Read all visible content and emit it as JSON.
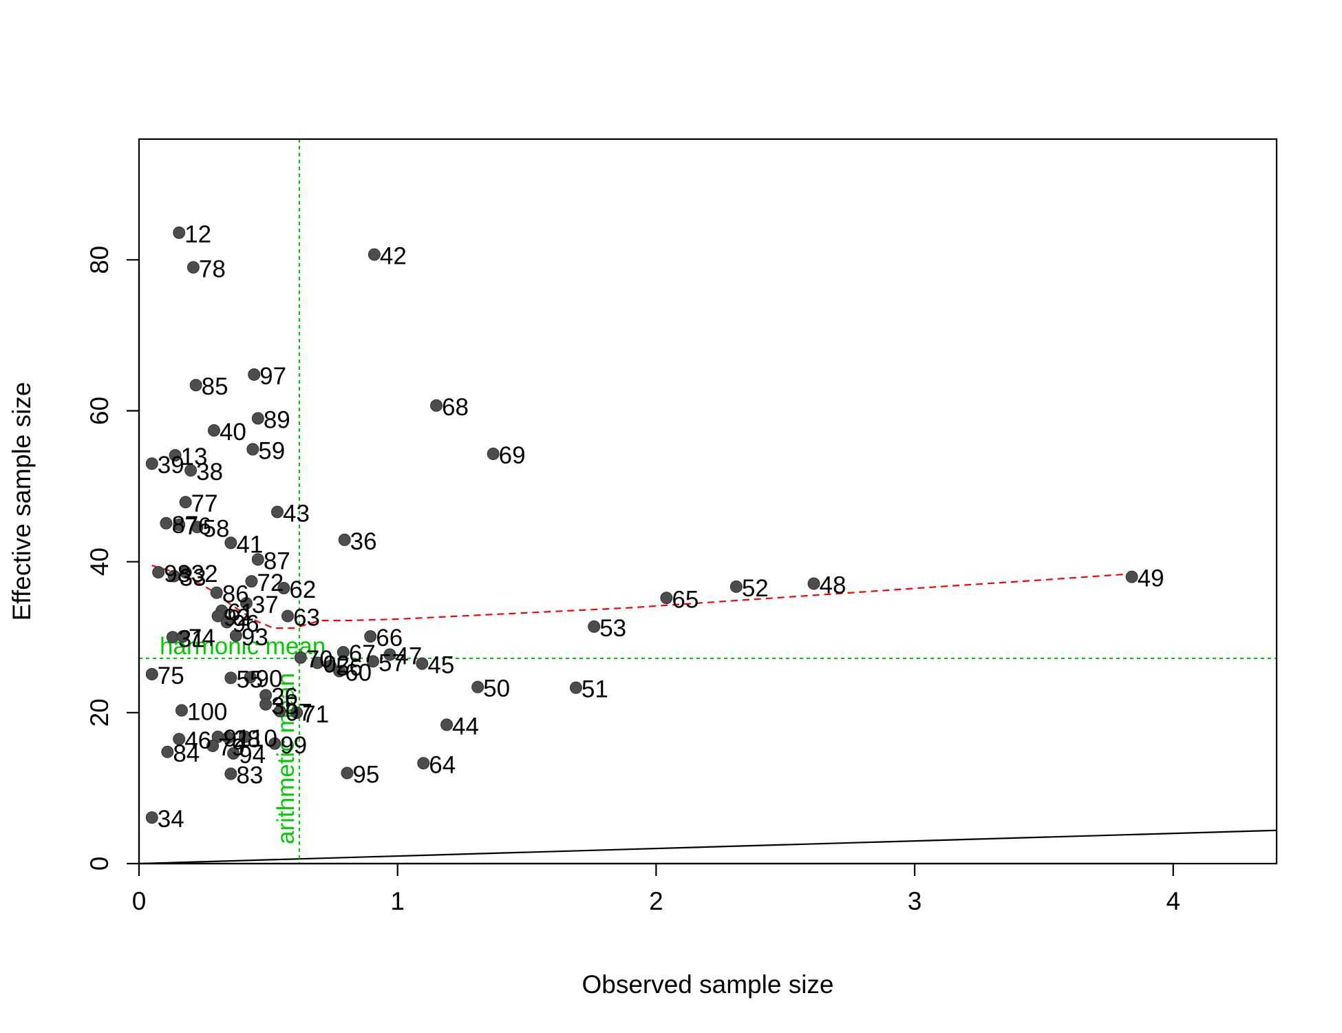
{
  "chart_data": {
    "type": "scatter",
    "title": "",
    "xlabel": "Observed sample size",
    "ylabel": "Effective sample size",
    "xlim": [
      0,
      4.4
    ],
    "ylim": [
      0,
      96
    ],
    "xticks": [
      0,
      1,
      2,
      3,
      4
    ],
    "yticks": [
      0,
      20,
      40,
      60,
      80
    ],
    "grid": false,
    "point_color": "#4d4d4d",
    "trend_color": "#ff0000",
    "reference_color": "#00cc00",
    "reference_lines": {
      "horizontal": {
        "value": 27.2,
        "label": "harmonic mean"
      },
      "vertical": {
        "value": 0.62,
        "label": "arithmetic mean"
      }
    },
    "identity_line": {
      "slope": 1,
      "intercept": 0
    },
    "trend_line": [
      [
        0.05,
        39.5
      ],
      [
        0.12,
        38.8
      ],
      [
        0.2,
        37.8
      ],
      [
        0.28,
        36.2
      ],
      [
        0.36,
        34.2
      ],
      [
        0.45,
        32.2
      ],
      [
        0.52,
        31.2
      ],
      [
        0.6,
        31.2
      ],
      [
        0.7,
        32.2
      ],
      [
        0.8,
        32.2
      ],
      [
        1.0,
        32.4
      ],
      [
        1.3,
        32.9
      ],
      [
        1.6,
        33.4
      ],
      [
        1.9,
        33.9
      ],
      [
        2.2,
        34.6
      ],
      [
        2.5,
        35.3
      ],
      [
        2.8,
        36.0
      ],
      [
        3.1,
        36.7
      ],
      [
        3.5,
        37.6
      ],
      [
        3.84,
        38.4
      ]
    ],
    "points": [
      {
        "id": "12",
        "x": 0.155,
        "y": 83.6
      },
      {
        "id": "78",
        "x": 0.21,
        "y": 79.0
      },
      {
        "id": "42",
        "x": 0.91,
        "y": 80.7
      },
      {
        "id": "97",
        "x": 0.445,
        "y": 64.8
      },
      {
        "id": "85",
        "x": 0.22,
        "y": 63.4
      },
      {
        "id": "68",
        "x": 1.15,
        "y": 60.7
      },
      {
        "id": "89",
        "x": 0.46,
        "y": 59.0
      },
      {
        "id": "40",
        "x": 0.29,
        "y": 57.4
      },
      {
        "id": "59",
        "x": 0.44,
        "y": 54.9
      },
      {
        "id": "69",
        "x": 1.37,
        "y": 54.3
      },
      {
        "id": "13",
        "x": 0.14,
        "y": 54.1
      },
      {
        "id": "39",
        "x": 0.05,
        "y": 53.0
      },
      {
        "id": "38",
        "x": 0.2,
        "y": 52.1
      },
      {
        "id": "77",
        "x": 0.18,
        "y": 47.9
      },
      {
        "id": "43",
        "x": 0.535,
        "y": 46.6
      },
      {
        "id": "87",
        "x": 0.105,
        "y": 45.1
      },
      {
        "id": "76",
        "x": 0.155,
        "y": 44.9
      },
      {
        "id": "58",
        "x": 0.225,
        "y": 44.6
      },
      {
        "id": "36",
        "x": 0.795,
        "y": 42.9
      },
      {
        "id": "41",
        "x": 0.355,
        "y": 42.5
      },
      {
        "id": "87",
        "x": 0.46,
        "y": 40.3
      },
      {
        "id": "98",
        "x": 0.075,
        "y": 38.6
      },
      {
        "id": "32",
        "x": 0.18,
        "y": 38.6
      },
      {
        "id": "33",
        "x": 0.135,
        "y": 38.1
      },
      {
        "id": "72",
        "x": 0.435,
        "y": 37.4
      },
      {
        "id": "62",
        "x": 0.56,
        "y": 36.5
      },
      {
        "id": "86",
        "x": 0.3,
        "y": 35.9
      },
      {
        "id": "37",
        "x": 0.415,
        "y": 34.5
      },
      {
        "id": "63",
        "x": 0.575,
        "y": 32.8
      },
      {
        "id": "61",
        "x": 0.32,
        "y": 33.5
      },
      {
        "id": "92",
        "x": 0.305,
        "y": 32.8
      },
      {
        "id": "96",
        "x": 0.34,
        "y": 32.0
      },
      {
        "id": "93",
        "x": 0.375,
        "y": 30.2
      },
      {
        "id": "66",
        "x": 0.895,
        "y": 30.1
      },
      {
        "id": "31",
        "x": 0.13,
        "y": 30.0
      },
      {
        "id": "74",
        "x": 0.17,
        "y": 30.1
      },
      {
        "id": "53",
        "x": 1.76,
        "y": 31.4
      },
      {
        "id": "65",
        "x": 2.04,
        "y": 35.2
      },
      {
        "id": "52",
        "x": 2.31,
        "y": 36.7
      },
      {
        "id": "48",
        "x": 2.61,
        "y": 37.1
      },
      {
        "id": "49",
        "x": 3.84,
        "y": 38.0
      },
      {
        "id": "70",
        "x": 0.625,
        "y": 27.3
      },
      {
        "id": "67",
        "x": 0.79,
        "y": 28.0
      },
      {
        "id": "47",
        "x": 0.97,
        "y": 27.7
      },
      {
        "id": "02",
        "x": 0.69,
        "y": 26.6
      },
      {
        "id": "56",
        "x": 0.74,
        "y": 26.2
      },
      {
        "id": "60",
        "x": 0.775,
        "y": 25.5
      },
      {
        "id": "57",
        "x": 0.905,
        "y": 26.8
      },
      {
        "id": "45",
        "x": 1.095,
        "y": 26.5
      },
      {
        "id": "75",
        "x": 0.05,
        "y": 25.1
      },
      {
        "id": "55",
        "x": 0.355,
        "y": 24.6
      },
      {
        "id": "90",
        "x": 0.43,
        "y": 24.7
      },
      {
        "id": "50",
        "x": 1.31,
        "y": 23.4
      },
      {
        "id": "51",
        "x": 1.69,
        "y": 23.3
      },
      {
        "id": "26",
        "x": 0.49,
        "y": 22.3
      },
      {
        "id": "35",
        "x": 0.49,
        "y": 21.1
      },
      {
        "id": "100",
        "x": 0.165,
        "y": 20.3
      },
      {
        "id": "07",
        "x": 0.545,
        "y": 20.2
      },
      {
        "id": "71",
        "x": 0.61,
        "y": 20.0
      },
      {
        "id": "44",
        "x": 1.19,
        "y": 18.4
      },
      {
        "id": "46",
        "x": 0.155,
        "y": 16.5
      },
      {
        "id": "91",
        "x": 0.305,
        "y": 16.8
      },
      {
        "id": "28",
        "x": 0.345,
        "y": 16.7
      },
      {
        "id": "10",
        "x": 0.41,
        "y": 16.8
      },
      {
        "id": "79",
        "x": 0.285,
        "y": 15.6
      },
      {
        "id": "99",
        "x": 0.525,
        "y": 15.9
      },
      {
        "id": "94",
        "x": 0.365,
        "y": 14.6
      },
      {
        "id": "84",
        "x": 0.11,
        "y": 14.8
      },
      {
        "id": "64",
        "x": 1.1,
        "y": 13.3
      },
      {
        "id": "95",
        "x": 0.805,
        "y": 12.0
      },
      {
        "id": "83",
        "x": 0.355,
        "y": 11.9
      },
      {
        "id": "34",
        "x": 0.05,
        "y": 6.1
      }
    ]
  }
}
